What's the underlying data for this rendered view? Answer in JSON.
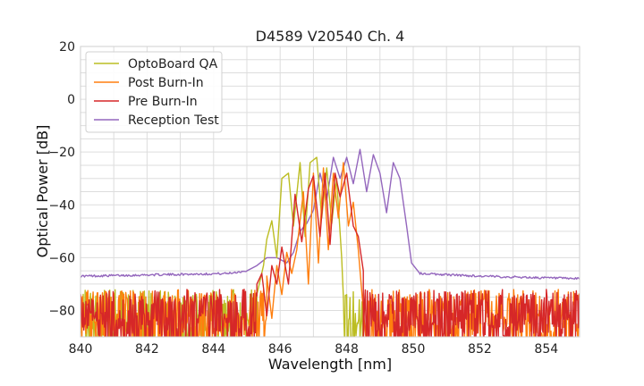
{
  "chart_data": {
    "type": "line",
    "title": "D4589 V20540 Ch. 4",
    "xlabel": "Wavelength [nm]",
    "ylabel": "Optical Power [dB]",
    "xlim": [
      840,
      855
    ],
    "ylim": [
      -90,
      20
    ],
    "xticks": [
      840,
      842,
      844,
      846,
      848,
      850,
      852,
      854
    ],
    "yticks": [
      20,
      0,
      -20,
      -40,
      -60,
      -80
    ],
    "ytick_labels": [
      "20",
      "0",
      "−20",
      "−40",
      "−60",
      "−80"
    ],
    "grid": true,
    "legend_position": "top-left",
    "series": [
      {
        "name": "OptoBoard QA",
        "color": "#bcbd22",
        "noise": [
          840,
          845.3
        ],
        "noise_tail": [
          847.9,
          848.5
        ],
        "x": [
          845.3,
          845.5,
          845.6,
          845.75,
          845.9,
          846.05,
          846.25,
          846.4,
          846.6,
          846.75,
          846.9,
          847.1,
          847.25,
          847.4,
          847.55,
          847.7,
          847.85
        ],
        "y": [
          -74,
          -63,
          -53,
          -46,
          -60,
          -30,
          -28,
          -48,
          -24,
          -52,
          -24,
          -22,
          -45,
          -26,
          -47,
          -30,
          -60
        ]
      },
      {
        "name": "Post Burn-In",
        "color": "#ff7f0e",
        "noise": [
          840,
          845.6
        ],
        "noise_tail": [
          848.6,
          855
        ],
        "x": [
          845.6,
          845.75,
          845.9,
          846.05,
          846.2,
          846.35,
          846.5,
          846.7,
          846.85,
          847.0,
          847.15,
          847.3,
          847.45,
          847.6,
          847.75,
          847.9,
          848.05,
          848.2,
          848.35,
          848.5
        ],
        "y": [
          -67,
          -83,
          -63,
          -74,
          -58,
          -66,
          -57,
          -35,
          -70,
          -28,
          -62,
          -26,
          -57,
          -28,
          -45,
          -24,
          -48,
          -39,
          -57,
          -80
        ]
      },
      {
        "name": "Pre Burn-In",
        "color": "#d62728",
        "noise": [
          840,
          845.3
        ],
        "noise_tail": [
          848.5,
          855
        ],
        "x": [
          845.3,
          845.45,
          845.6,
          845.75,
          845.9,
          846.05,
          846.25,
          846.45,
          846.65,
          846.85,
          847.0,
          847.2,
          847.35,
          847.5,
          847.65,
          847.8,
          848.0,
          848.2,
          848.35,
          848.5
        ],
        "y": [
          -70,
          -66,
          -82,
          -63,
          -70,
          -56,
          -70,
          -36,
          -54,
          -34,
          -29,
          -52,
          -28,
          -55,
          -28,
          -37,
          -28,
          -48,
          -52,
          -65
        ]
      },
      {
        "name": "Reception Test",
        "color": "#9467bd",
        "baseline": [
          [
            840,
            -67
          ],
          [
            844.4,
            -66
          ],
          [
            845.0,
            -65
          ],
          [
            850.2,
            -66
          ],
          [
            852,
            -67
          ],
          [
            855,
            -68
          ]
        ],
        "x": [
          845.0,
          845.3,
          845.6,
          845.9,
          846.2,
          846.4,
          846.6,
          846.8,
          847.0,
          847.2,
          847.4,
          847.6,
          847.8,
          848.0,
          848.2,
          848.4,
          848.6,
          848.8,
          849.0,
          849.2,
          849.4,
          849.6,
          849.8,
          849.95,
          850.2
        ],
        "y": [
          -65,
          -63,
          -60,
          -60,
          -62,
          -58,
          -50,
          -47,
          -42,
          -28,
          -38,
          -22,
          -30,
          -22,
          -32,
          -19,
          -35,
          -21,
          -28,
          -43,
          -24,
          -30,
          -48,
          -62,
          -66
        ]
      }
    ]
  }
}
